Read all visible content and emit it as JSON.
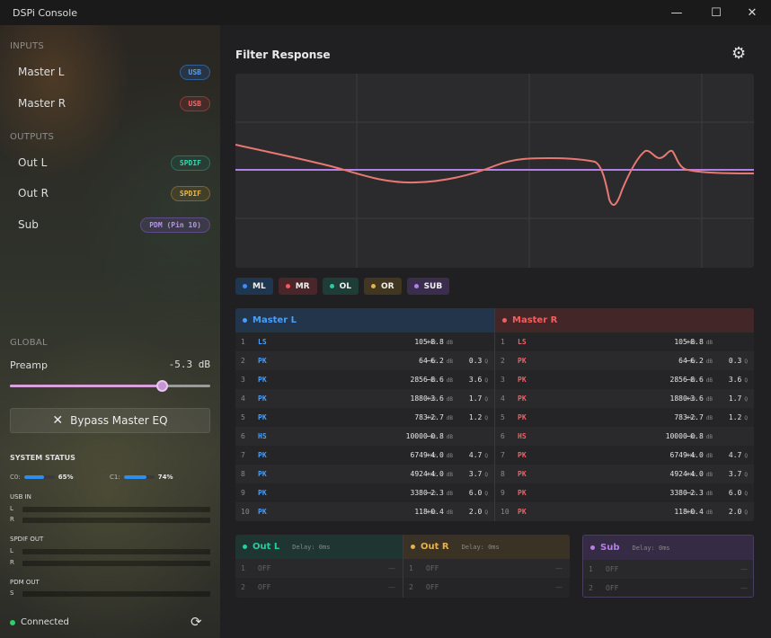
{
  "app": {
    "title": "DSPi Console"
  },
  "window_controls": {
    "minimize": "—",
    "maximize": "☐",
    "close": "✕"
  },
  "sidebar": {
    "inputs_heading": "INPUTS",
    "inputs": [
      {
        "label": "Master L",
        "badge": "USB"
      },
      {
        "label": "Master R",
        "badge": "USB"
      }
    ],
    "outputs_heading": "OUTPUTS",
    "outputs": [
      {
        "label": "Out L",
        "badge": "SPDIF"
      },
      {
        "label": "Out R",
        "badge": "SPDIF"
      },
      {
        "label": "Sub",
        "badge": "PDM (Pin 10)"
      }
    ],
    "global_heading": "GLOBAL",
    "preamp": {
      "label": "Preamp",
      "value": "-5.3 dB",
      "level": 0.76
    },
    "bypass_button": "Bypass Master EQ",
    "status": {
      "heading": "SYSTEM STATUS",
      "cores": [
        {
          "label": "C0:",
          "percent": "65%",
          "level": 0.65
        },
        {
          "label": "C1:",
          "percent": "74%",
          "level": 0.74
        }
      ],
      "usb_in": {
        "label": "USB IN",
        "channels": [
          "L",
          "R"
        ]
      },
      "spdif_out": {
        "label": "SPDIF OUT",
        "channels": [
          "L",
          "R"
        ]
      },
      "pdm_out": {
        "label": "PDM OUT",
        "channels": [
          "S"
        ]
      }
    },
    "connection": "Connected"
  },
  "main": {
    "title": "Filter Response",
    "chips": [
      {
        "label": "ML",
        "color": "#3d8ef0"
      },
      {
        "label": "MR",
        "color": "#ef5a5a"
      },
      {
        "label": "OL",
        "color": "#2fc9a0"
      },
      {
        "label": "OR",
        "color": "#e6b04a"
      },
      {
        "label": "SUB",
        "color": "#b47fe6"
      }
    ],
    "master_l": {
      "name": "Master L",
      "color": "#4a9ef5",
      "bands": [
        {
          "n": "1",
          "type": "LS",
          "freq": "105",
          "gain": "+8.8",
          "q": ""
        },
        {
          "n": "2",
          "type": "PK",
          "freq": "64",
          "gain": "−6.2",
          "q": "0.3"
        },
        {
          "n": "3",
          "type": "PK",
          "freq": "2856",
          "gain": "−8.6",
          "q": "3.6"
        },
        {
          "n": "4",
          "type": "PK",
          "freq": "1880",
          "gain": "+3.6",
          "q": "1.7"
        },
        {
          "n": "5",
          "type": "PK",
          "freq": "783",
          "gain": "+2.7",
          "q": "1.2"
        },
        {
          "n": "6",
          "type": "HS",
          "freq": "10000",
          "gain": "−0.8",
          "q": ""
        },
        {
          "n": "7",
          "type": "PK",
          "freq": "6749",
          "gain": "+4.0",
          "q": "4.7"
        },
        {
          "n": "8",
          "type": "PK",
          "freq": "4924",
          "gain": "+4.0",
          "q": "3.7"
        },
        {
          "n": "9",
          "type": "PK",
          "freq": "3380",
          "gain": "−2.3",
          "q": "6.0"
        },
        {
          "n": "10",
          "type": "PK",
          "freq": "118",
          "gain": "+0.4",
          "q": "2.0"
        }
      ]
    },
    "master_r": {
      "name": "Master R",
      "color": "#ef6060",
      "bands": [
        {
          "n": "1",
          "type": "LS",
          "freq": "105",
          "gain": "+8.8",
          "q": ""
        },
        {
          "n": "2",
          "type": "PK",
          "freq": "64",
          "gain": "−6.2",
          "q": "0.3"
        },
        {
          "n": "3",
          "type": "PK",
          "freq": "2856",
          "gain": "−8.6",
          "q": "3.6"
        },
        {
          "n": "4",
          "type": "PK",
          "freq": "1880",
          "gain": "+3.6",
          "q": "1.7"
        },
        {
          "n": "5",
          "type": "PK",
          "freq": "783",
          "gain": "+2.7",
          "q": "1.2"
        },
        {
          "n": "6",
          "type": "HS",
          "freq": "10000",
          "gain": "−0.8",
          "q": ""
        },
        {
          "n": "7",
          "type": "PK",
          "freq": "6749",
          "gain": "+4.0",
          "q": "4.7"
        },
        {
          "n": "8",
          "type": "PK",
          "freq": "4924",
          "gain": "+4.0",
          "q": "3.7"
        },
        {
          "n": "9",
          "type": "PK",
          "freq": "3380",
          "gain": "−2.3",
          "q": "6.0"
        },
        {
          "n": "10",
          "type": "PK",
          "freq": "118",
          "gain": "+0.4",
          "q": "2.0"
        }
      ]
    },
    "units": {
      "hz": "Hz",
      "db": "dB",
      "q": "Q"
    },
    "outputs": [
      {
        "name": "Out L",
        "color": "#2fc9a0",
        "delay": "Delay: 0ms",
        "rows": [
          {
            "n": "1",
            "state": "OFF",
            "value": "—"
          },
          {
            "n": "2",
            "state": "OFF",
            "value": "—"
          }
        ]
      },
      {
        "name": "Out R",
        "color": "#e6b04a",
        "delay": "Delay: 0ms",
        "rows": [
          {
            "n": "1",
            "state": "OFF",
            "value": "—"
          },
          {
            "n": "2",
            "state": "OFF",
            "value": "—"
          }
        ]
      },
      {
        "name": "Sub",
        "color": "#b47fe6",
        "delay": "Delay: 0ms",
        "rows": [
          {
            "n": "1",
            "state": "OFF",
            "value": "—"
          },
          {
            "n": "2",
            "state": "OFF",
            "value": "—"
          }
        ]
      }
    ]
  }
}
